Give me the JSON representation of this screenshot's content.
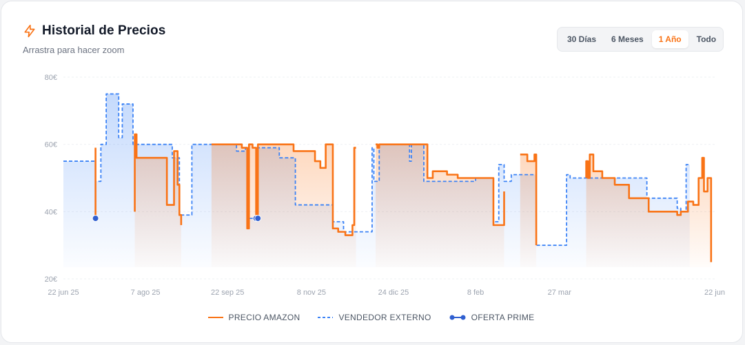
{
  "header": {
    "title": "Historial de Precios",
    "subtitle": "Arrastra para hacer zoom",
    "icon": "lightning-icon"
  },
  "range_buttons": [
    {
      "label": "30 Días",
      "active": false
    },
    {
      "label": "6 Meses",
      "active": false
    },
    {
      "label": "1 Año",
      "active": true
    },
    {
      "label": "Todo",
      "active": false
    }
  ],
  "colors": {
    "amazon": "#f97316",
    "external": "#3b82f6",
    "prime": "#2f5fd0"
  },
  "chart_data": {
    "type": "line",
    "title": "Historial de Precios",
    "xlabel": "",
    "ylabel": "",
    "x_range": [
      "2025-06-22",
      "2026-06-22"
    ],
    "ylim": [
      20,
      80
    ],
    "y_ticks": [
      20,
      40,
      60,
      80
    ],
    "y_tick_labels": [
      "20€",
      "40€",
      "60€",
      "80€"
    ],
    "x_ticks": [
      {
        "date": "2025-06-22",
        "label": "22 jun 25"
      },
      {
        "date": "2025-08-07",
        "label": "7 ago 25"
      },
      {
        "date": "2025-09-22",
        "label": "22 sep 25"
      },
      {
        "date": "2025-11-08",
        "label": "8 nov 25"
      },
      {
        "date": "2025-12-24",
        "label": "24 dic 25"
      },
      {
        "date": "2026-02-08",
        "label": "8 feb"
      },
      {
        "date": "2026-03-27",
        "label": "27 mar"
      },
      {
        "date": "2026-06-22",
        "label": "22 jun"
      }
    ],
    "grid": true,
    "legend_position": "bottom",
    "series": [
      {
        "name": "PRECIO AMAZON",
        "style": "solid",
        "points": [
          [
            "2025-07-10",
            59
          ],
          [
            "2025-07-10",
            38
          ],
          [
            "2025-07-10",
            null
          ],
          [
            "2025-08-01",
            40
          ],
          [
            "2025-08-01",
            63
          ],
          [
            "2025-08-02",
            63
          ],
          [
            "2025-08-02",
            56
          ],
          [
            "2025-08-19",
            56
          ],
          [
            "2025-08-19",
            42
          ],
          [
            "2025-08-23",
            42
          ],
          [
            "2025-08-23",
            58
          ],
          [
            "2025-08-25",
            58
          ],
          [
            "2025-08-25",
            48
          ],
          [
            "2025-08-26",
            48
          ],
          [
            "2025-08-26",
            39
          ],
          [
            "2025-08-27",
            39
          ],
          [
            "2025-08-27",
            36
          ],
          [
            "2025-08-27",
            null
          ],
          [
            "2025-09-13",
            60
          ],
          [
            "2025-09-30",
            60
          ],
          [
            "2025-09-30",
            59
          ],
          [
            "2025-10-03",
            59
          ],
          [
            "2025-10-03",
            35
          ],
          [
            "2025-10-04",
            35
          ],
          [
            "2025-10-04",
            60
          ],
          [
            "2025-10-06",
            60
          ],
          [
            "2025-10-06",
            59
          ],
          [
            "2025-10-08",
            59
          ],
          [
            "2025-10-08",
            38
          ],
          [
            "2025-10-09",
            38
          ],
          [
            "2025-10-09",
            60
          ],
          [
            "2025-10-29",
            60
          ],
          [
            "2025-10-29",
            58
          ],
          [
            "2025-11-10",
            58
          ],
          [
            "2025-11-10",
            55
          ],
          [
            "2025-11-13",
            55
          ],
          [
            "2025-11-13",
            53
          ],
          [
            "2025-11-16",
            53
          ],
          [
            "2025-11-16",
            60
          ],
          [
            "2025-11-20",
            60
          ],
          [
            "2025-11-20",
            35
          ],
          [
            "2025-11-23",
            35
          ],
          [
            "2025-11-23",
            34
          ],
          [
            "2025-11-27",
            34
          ],
          [
            "2025-11-27",
            33
          ],
          [
            "2025-12-01",
            33
          ],
          [
            "2025-12-01",
            36
          ],
          [
            "2025-12-02",
            36
          ],
          [
            "2025-12-02",
            59
          ],
          [
            "2025-12-03",
            59
          ],
          [
            "2025-12-03",
            null
          ],
          [
            "2025-12-14",
            60
          ],
          [
            "2025-12-15",
            60
          ],
          [
            "2025-12-15",
            59
          ],
          [
            "2025-12-16",
            59
          ],
          [
            "2025-12-16",
            60
          ],
          [
            "2026-01-12",
            60
          ],
          [
            "2026-01-12",
            50
          ],
          [
            "2026-01-15",
            50
          ],
          [
            "2026-01-15",
            52
          ],
          [
            "2026-01-23",
            52
          ],
          [
            "2026-01-23",
            51
          ],
          [
            "2026-01-29",
            51
          ],
          [
            "2026-01-29",
            50
          ],
          [
            "2026-02-18",
            50
          ],
          [
            "2026-02-18",
            36
          ],
          [
            "2026-02-24",
            36
          ],
          [
            "2026-02-24",
            46
          ],
          [
            "2026-02-24",
            null
          ],
          [
            "2026-03-05",
            57
          ],
          [
            "2026-03-09",
            57
          ],
          [
            "2026-03-09",
            55
          ],
          [
            "2026-03-13",
            55
          ],
          [
            "2026-03-13",
            57
          ],
          [
            "2026-03-14",
            57
          ],
          [
            "2026-03-14",
            30
          ],
          [
            "2026-03-14",
            null
          ],
          [
            "2026-04-11",
            50
          ],
          [
            "2026-04-11",
            55
          ],
          [
            "2026-04-12",
            55
          ],
          [
            "2026-04-12",
            50
          ],
          [
            "2026-04-13",
            50
          ],
          [
            "2026-04-13",
            57
          ],
          [
            "2026-04-15",
            57
          ],
          [
            "2026-04-15",
            52
          ],
          [
            "2026-04-20",
            52
          ],
          [
            "2026-04-20",
            50
          ],
          [
            "2026-04-27",
            50
          ],
          [
            "2026-04-27",
            48
          ],
          [
            "2026-05-05",
            48
          ],
          [
            "2026-05-05",
            44
          ],
          [
            "2026-05-16",
            44
          ],
          [
            "2026-05-16",
            40
          ],
          [
            "2026-06-01",
            40
          ],
          [
            "2026-06-01",
            39
          ],
          [
            "2026-06-03",
            39
          ],
          [
            "2026-06-03",
            40
          ],
          [
            "2026-06-07",
            40
          ],
          [
            "2026-06-07",
            43
          ],
          [
            "2026-06-10",
            43
          ],
          [
            "2026-06-10",
            42
          ],
          [
            "2026-06-13",
            42
          ],
          [
            "2026-06-13",
            50
          ],
          [
            "2026-06-15",
            50
          ],
          [
            "2026-06-15",
            56
          ],
          [
            "2026-06-16",
            56
          ],
          [
            "2026-06-16",
            46
          ],
          [
            "2026-06-18",
            46
          ],
          [
            "2026-06-18",
            50
          ],
          [
            "2026-06-20",
            50
          ],
          [
            "2026-06-20",
            25
          ]
        ]
      },
      {
        "name": "VENDEDOR EXTERNO",
        "style": "dashed",
        "points": [
          [
            "2025-06-22",
            55
          ],
          [
            "2025-07-10",
            55
          ],
          [
            "2025-07-10",
            49
          ],
          [
            "2025-07-13",
            49
          ],
          [
            "2025-07-13",
            60
          ],
          [
            "2025-07-16",
            60
          ],
          [
            "2025-07-16",
            75
          ],
          [
            "2025-07-23",
            75
          ],
          [
            "2025-07-23",
            62
          ],
          [
            "2025-07-25",
            62
          ],
          [
            "2025-07-25",
            72
          ],
          [
            "2025-07-31",
            72
          ],
          [
            "2025-07-31",
            60
          ],
          [
            "2025-08-22",
            60
          ],
          [
            "2025-08-22",
            56
          ],
          [
            "2025-08-26",
            56
          ],
          [
            "2025-08-26",
            39
          ],
          [
            "2025-09-02",
            39
          ],
          [
            "2025-09-02",
            60
          ],
          [
            "2025-09-27",
            60
          ],
          [
            "2025-09-27",
            58
          ],
          [
            "2025-10-02",
            58
          ],
          [
            "2025-10-02",
            59
          ],
          [
            "2025-10-04",
            59
          ],
          [
            "2025-10-04",
            38
          ],
          [
            "2025-10-09",
            38
          ],
          [
            "2025-10-09",
            59
          ],
          [
            "2025-10-21",
            59
          ],
          [
            "2025-10-21",
            56
          ],
          [
            "2025-10-30",
            56
          ],
          [
            "2025-10-30",
            42
          ],
          [
            "2025-11-20",
            42
          ],
          [
            "2025-11-20",
            37
          ],
          [
            "2025-11-26",
            37
          ],
          [
            "2025-11-26",
            34
          ],
          [
            "2025-12-12",
            34
          ],
          [
            "2025-12-12",
            59
          ],
          [
            "2025-12-13",
            59
          ],
          [
            "2025-12-13",
            49
          ],
          [
            "2025-12-16",
            49
          ],
          [
            "2025-12-16",
            60
          ],
          [
            "2026-01-02",
            60
          ],
          [
            "2026-01-02",
            55
          ],
          [
            "2026-01-03",
            55
          ],
          [
            "2026-01-03",
            60
          ],
          [
            "2026-01-10",
            60
          ],
          [
            "2026-01-10",
            49
          ],
          [
            "2026-02-08",
            49
          ],
          [
            "2026-02-08",
            50
          ],
          [
            "2026-02-18",
            50
          ],
          [
            "2026-02-18",
            37
          ],
          [
            "2026-02-21",
            37
          ],
          [
            "2026-02-21",
            54
          ],
          [
            "2026-02-24",
            54
          ],
          [
            "2026-02-24",
            49
          ],
          [
            "2026-02-28",
            49
          ],
          [
            "2026-02-28",
            51
          ],
          [
            "2026-03-14",
            51
          ],
          [
            "2026-03-14",
            30
          ],
          [
            "2026-03-31",
            30
          ],
          [
            "2026-03-31",
            51
          ],
          [
            "2026-04-02",
            51
          ],
          [
            "2026-04-02",
            50
          ],
          [
            "2026-05-15",
            50
          ],
          [
            "2026-05-15",
            44
          ],
          [
            "2026-06-01",
            44
          ],
          [
            "2026-06-01",
            41
          ],
          [
            "2026-06-03",
            41
          ],
          [
            "2026-06-03",
            40
          ],
          [
            "2026-06-06",
            40
          ],
          [
            "2026-06-06",
            54
          ],
          [
            "2026-06-08",
            54
          ],
          [
            "2026-06-08",
            null
          ]
        ]
      },
      {
        "name": "OFERTA PRIME",
        "style": "markers",
        "points": [
          [
            "2025-07-10",
            38
          ],
          [
            "2025-10-08",
            38
          ],
          [
            "2025-10-09",
            38
          ]
        ]
      }
    ]
  }
}
